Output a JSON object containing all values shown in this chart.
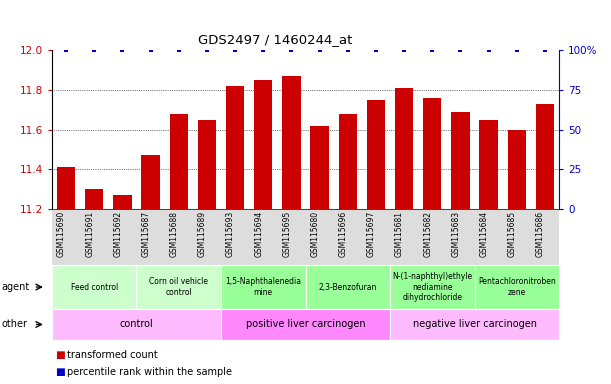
{
  "title": "GDS2497 / 1460244_at",
  "samples": [
    "GSM115690",
    "GSM115691",
    "GSM115692",
    "GSM115687",
    "GSM115688",
    "GSM115689",
    "GSM115693",
    "GSM115694",
    "GSM115695",
    "GSM115680",
    "GSM115696",
    "GSM115697",
    "GSM115681",
    "GSM115682",
    "GSM115683",
    "GSM115684",
    "GSM115685",
    "GSM115686"
  ],
  "values": [
    11.41,
    11.3,
    11.27,
    11.47,
    11.68,
    11.65,
    11.82,
    11.85,
    11.87,
    11.62,
    11.68,
    11.75,
    11.81,
    11.76,
    11.69,
    11.65,
    11.6,
    11.73
  ],
  "bar_color": "#cc0000",
  "dot_color": "#0000cc",
  "ylim_left": [
    11.2,
    12.0
  ],
  "ylim_right": [
    0,
    100
  ],
  "yticks_left": [
    11.2,
    11.4,
    11.6,
    11.8,
    12.0
  ],
  "yticks_right": [
    0,
    25,
    50,
    75,
    100
  ],
  "agent_groups": [
    {
      "label": "Feed control",
      "start": 0,
      "end": 3,
      "color": "#ccffcc"
    },
    {
      "label": "Corn oil vehicle\ncontrol",
      "start": 3,
      "end": 6,
      "color": "#ccffcc"
    },
    {
      "label": "1,5-Naphthalenedia\nmine",
      "start": 6,
      "end": 9,
      "color": "#99ff99"
    },
    {
      "label": "2,3-Benzofuran",
      "start": 9,
      "end": 12,
      "color": "#99ff99"
    },
    {
      "label": "N-(1-naphthyl)ethyle\nnediamine\ndihydrochloride",
      "start": 12,
      "end": 15,
      "color": "#99ff99"
    },
    {
      "label": "Pentachloronitroben\nzene",
      "start": 15,
      "end": 18,
      "color": "#99ff99"
    }
  ],
  "other_groups": [
    {
      "label": "control",
      "start": 0,
      "end": 6,
      "color": "#ffbbff"
    },
    {
      "label": "positive liver carcinogen",
      "start": 6,
      "end": 12,
      "color": "#ff88ff"
    },
    {
      "label": "negative liver carcinogen",
      "start": 12,
      "end": 18,
      "color": "#ffbbff"
    }
  ],
  "legend_items": [
    {
      "label": "transformed count",
      "color": "#cc0000"
    },
    {
      "label": "percentile rank within the sample",
      "color": "#0000cc"
    }
  ],
  "xtick_bg": "#dddddd",
  "fig_bg": "#ffffff"
}
